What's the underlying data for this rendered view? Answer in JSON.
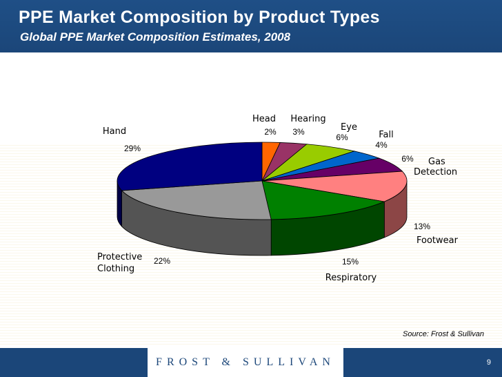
{
  "header": {
    "title": "PPE Market Composition by Product Types",
    "subtitle": "Global PPE Market Composition Estimates, 2008"
  },
  "chart_data": {
    "type": "pie",
    "categories": [
      "Head",
      "Hearing",
      "Eye",
      "Fall",
      "Gas Detection",
      "Footwear",
      "Respiratory",
      "Protective Clothing",
      "Hand"
    ],
    "values": [
      2,
      3,
      6,
      4,
      6,
      13,
      15,
      22,
      29
    ],
    "value_labels": [
      "2%",
      "3%",
      "6%",
      "4%",
      "6%",
      "13%",
      "15%",
      "22%",
      "29%"
    ],
    "colors": [
      "#ff6600",
      "#993366",
      "#99cc00",
      "#0066cc",
      "#660066",
      "#ff8080",
      "#008000",
      "#999999",
      "#000080"
    ],
    "three_d": true
  },
  "source": "Source: Frost & Sullivan",
  "footer": {
    "logo_text": "FROST & SULLIVAN",
    "page_number": "9"
  }
}
